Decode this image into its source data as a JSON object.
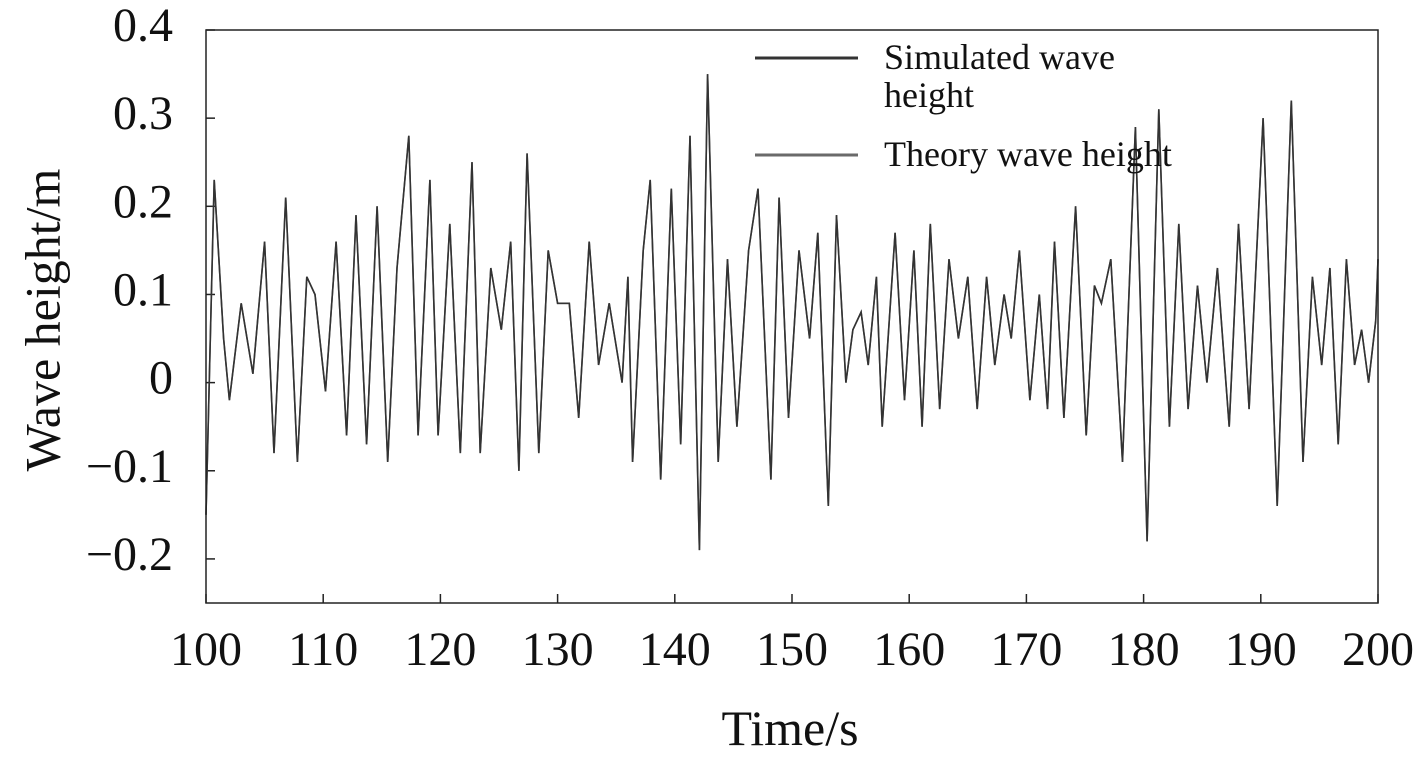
{
  "chart_data": {
    "type": "line",
    "xlabel": "Time/s",
    "ylabel": "Wave height/m",
    "x": [
      100,
      100.7,
      101.5,
      102,
      103,
      104,
      105,
      105.8,
      106.8,
      107.8,
      108.6,
      109.3,
      110.2,
      111.1,
      112,
      112.8,
      113.7,
      114.6,
      115.5,
      116.3,
      117.3,
      118.1,
      119.1,
      119.8,
      120.8,
      121.7,
      122.7,
      123.4,
      124.3,
      125.2,
      126,
      126.7,
      127.4,
      128.4,
      129.2,
      130,
      131,
      131.8,
      132.7,
      133.5,
      134.4,
      135.5,
      136,
      136.4,
      137.3,
      137.9,
      138.8,
      139.7,
      140.5,
      141.3,
      142.1,
      142.8,
      143.7,
      144.5,
      145.3,
      146.3,
      147.1,
      148.2,
      148.9,
      149.7,
      150.6,
      151.5,
      152.2,
      153.1,
      153.8,
      154.6,
      155.2,
      155.9,
      156.5,
      157.2,
      157.7,
      158.8,
      159.6,
      160.4,
      161.1,
      161.8,
      162.6,
      163.4,
      164.2,
      165,
      165.8,
      166.6,
      167.3,
      168.1,
      168.7,
      169.4,
      170.3,
      171.1,
      171.8,
      172.4,
      173.2,
      174.2,
      175.1,
      175.8,
      176.4,
      177.2,
      178.2,
      179.3,
      180.3,
      181.3,
      182.2,
      183,
      183.8,
      184.6,
      185.4,
      186.3,
      187.3,
      188.1,
      189,
      190.2,
      191.4,
      192.6,
      193.6,
      194.4,
      195.2,
      195.9,
      196.6,
      197.3,
      198,
      198.6,
      199.2,
      199.8,
      200
    ],
    "series": [
      {
        "name": "Simulated wave height",
        "color": "#333333",
        "values": [
          -0.15,
          0.23,
          0.05,
          -0.02,
          0.09,
          0.01,
          0.16,
          -0.08,
          0.21,
          -0.09,
          0.12,
          0.1,
          -0.01,
          0.16,
          -0.06,
          0.19,
          -0.07,
          0.2,
          -0.09,
          0.13,
          0.28,
          -0.06,
          0.23,
          -0.06,
          0.18,
          -0.08,
          0.25,
          -0.08,
          0.13,
          0.06,
          0.16,
          -0.1,
          0.26,
          -0.08,
          0.15,
          0.09,
          0.09,
          -0.04,
          0.16,
          0.02,
          0.09,
          0.0,
          0.12,
          -0.09,
          0.15,
          0.23,
          -0.11,
          0.22,
          -0.07,
          0.28,
          -0.19,
          0.35,
          -0.09,
          0.14,
          -0.05,
          0.15,
          0.22,
          -0.11,
          0.21,
          -0.04,
          0.15,
          0.05,
          0.17,
          -0.14,
          0.19,
          0.0,
          0.06,
          0.08,
          0.02,
          0.12,
          -0.05,
          0.17,
          -0.02,
          0.15,
          -0.05,
          0.18,
          -0.03,
          0.14,
          0.05,
          0.12,
          -0.03,
          0.12,
          0.02,
          0.1,
          0.05,
          0.15,
          -0.02,
          0.1,
          -0.03,
          0.16,
          -0.04,
          0.2,
          -0.06,
          0.11,
          0.09,
          0.14,
          -0.09,
          0.29,
          -0.18,
          0.31,
          -0.05,
          0.18,
          -0.03,
          0.11,
          0.0,
          0.13,
          -0.05,
          0.18,
          -0.03,
          0.3,
          -0.14,
          0.32,
          -0.09,
          0.12,
          0.02,
          0.13,
          -0.07,
          0.14,
          0.02,
          0.06,
          0.0,
          0.07,
          0.14
        ]
      },
      {
        "name": "Theory wave height",
        "color": "#6a6a6a",
        "values": [
          -0.15,
          0.23,
          0.05,
          -0.02,
          0.09,
          0.01,
          0.16,
          -0.08,
          0.21,
          -0.09,
          0.12,
          0.1,
          -0.01,
          0.16,
          -0.06,
          0.19,
          -0.07,
          0.2,
          -0.09,
          0.13,
          0.28,
          -0.06,
          0.23,
          -0.06,
          0.18,
          -0.08,
          0.25,
          -0.08,
          0.13,
          0.06,
          0.16,
          -0.1,
          0.26,
          -0.08,
          0.15,
          0.09,
          0.09,
          -0.04,
          0.16,
          0.02,
          0.09,
          0.0,
          0.12,
          -0.09,
          0.15,
          0.23,
          -0.11,
          0.22,
          -0.07,
          0.28,
          -0.19,
          0.35,
          -0.09,
          0.14,
          -0.05,
          0.15,
          0.22,
          -0.11,
          0.21,
          -0.04,
          0.15,
          0.05,
          0.17,
          -0.14,
          0.19,
          0.0,
          0.06,
          0.08,
          0.02,
          0.12,
          -0.05,
          0.17,
          -0.02,
          0.15,
          -0.05,
          0.18,
          -0.03,
          0.14,
          0.05,
          0.12,
          -0.03,
          0.12,
          0.02,
          0.1,
          0.05,
          0.15,
          -0.02,
          0.1,
          -0.03,
          0.16,
          -0.04,
          0.2,
          -0.06,
          0.11,
          0.09,
          0.14,
          -0.09,
          0.29,
          -0.18,
          0.31,
          -0.05,
          0.18,
          -0.03,
          0.11,
          0.0,
          0.13,
          -0.05,
          0.18,
          -0.03,
          0.3,
          -0.14,
          0.32,
          -0.09,
          0.12,
          0.02,
          0.13,
          -0.07,
          0.14,
          0.02,
          0.06,
          0.0,
          0.07,
          0.14
        ]
      }
    ],
    "xlim": [
      100,
      200
    ],
    "ylim": [
      -0.25,
      0.4
    ],
    "xticks": [
      100,
      110,
      120,
      130,
      140,
      150,
      160,
      170,
      180,
      190,
      200
    ],
    "yticks": [
      0.4,
      0.3,
      0.2,
      0.1,
      0,
      {
        "value": -0.1,
        "label": "−0.1"
      },
      {
        "value": -0.2,
        "label": "−0.2"
      }
    ],
    "legend": "upper-center",
    "grid": false
  }
}
